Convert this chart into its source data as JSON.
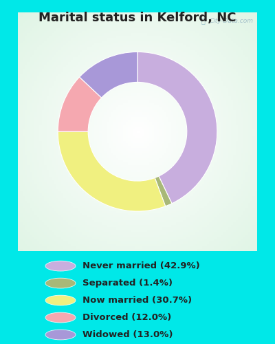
{
  "title": "Marital status in Kelford, NC",
  "title_fontsize": 13,
  "title_fontweight": "bold",
  "title_color": "#222222",
  "background_cyan": "#00e8e8",
  "background_chart": "#e8f5ee",
  "watermark": "City-Data.com",
  "slices": [
    {
      "label": "Never married (42.9%)",
      "value": 42.9,
      "color": "#c8aede"
    },
    {
      "label": "Separated (1.4%)",
      "value": 1.4,
      "color": "#a8b878"
    },
    {
      "label": "Now married (30.7%)",
      "value": 30.7,
      "color": "#f0f080"
    },
    {
      "label": "Divorced (12.0%)",
      "value": 12.0,
      "color": "#f5a8b0"
    },
    {
      "label": "Widowed (13.0%)",
      "value": 13.0,
      "color": "#a898d8"
    }
  ],
  "legend_fontsize": 9.5,
  "figsize": [
    4.0,
    5.0
  ],
  "dpi": 100,
  "donut_width": 0.38,
  "startangle": 90
}
